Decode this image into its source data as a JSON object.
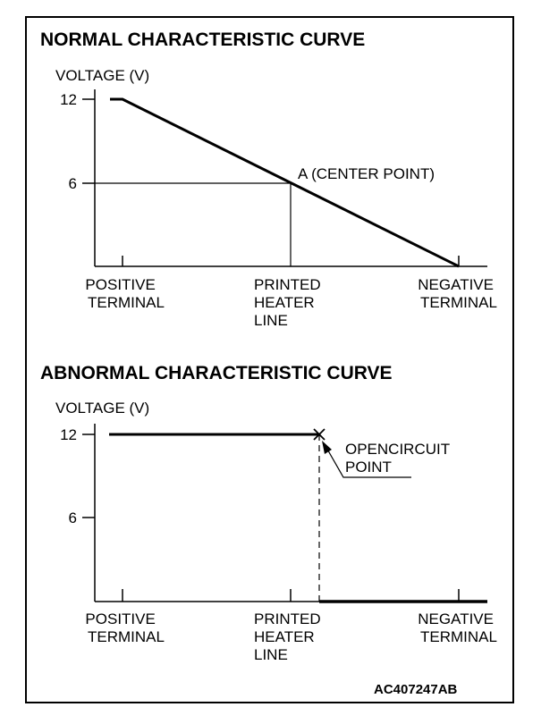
{
  "figure_code": "AC407247AB",
  "charts": [
    {
      "title": "NORMAL CHARACTERISTIC CURVE",
      "ylabel": "VOLTAGE (V)",
      "yticks": [
        "12",
        "6"
      ],
      "xticks": [
        {
          "lines": [
            "POSITIVE",
            "TERMINAL"
          ]
        },
        {
          "lines": [
            "PRINTED",
            "HEATER",
            "LINE"
          ]
        },
        {
          "lines": [
            "NEGATIVE",
            "TERMINAL"
          ]
        }
      ],
      "annotation": "A (CENTER POINT)"
    },
    {
      "title": "ABNORMAL CHARACTERISTIC CURVE",
      "ylabel": "VOLTAGE (V)",
      "yticks": [
        "12",
        "6"
      ],
      "xticks": [
        {
          "lines": [
            "POSITIVE",
            "TERMINAL"
          ]
        },
        {
          "lines": [
            "PRINTED",
            "HEATER",
            "LINE"
          ]
        },
        {
          "lines": [
            "NEGATIVE",
            "TERMINAL"
          ]
        }
      ],
      "annotation_lines": [
        "OPENCIRCUIT",
        "POINT"
      ]
    }
  ]
}
